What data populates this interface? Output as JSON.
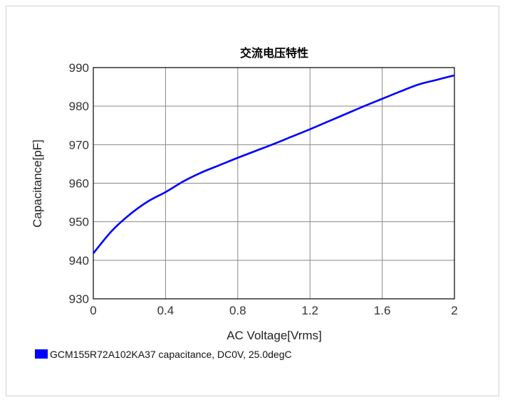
{
  "chart_data": {
    "type": "line",
    "title": "交流电压特性",
    "xlabel": "AC Voltage[Vrms]",
    "ylabel": "Capacitance[pF]",
    "xlim": [
      0,
      2
    ],
    "ylim": [
      930,
      990
    ],
    "x_ticks": [
      "0",
      "0.4",
      "0.8",
      "1.2",
      "1.6",
      "2"
    ],
    "y_ticks": [
      "930",
      "940",
      "950",
      "960",
      "970",
      "980",
      "990"
    ],
    "grid": true,
    "legend_placement": "bottom-left",
    "series": [
      {
        "name": "GCM155R72A102KA37 capacitance, DC0V, 25.0degC",
        "color": "#0000ff",
        "x": [
          0,
          0.1,
          0.2,
          0.3,
          0.4,
          0.5,
          0.6,
          0.7,
          0.8,
          0.9,
          1.0,
          1.1,
          1.2,
          1.3,
          1.4,
          1.5,
          1.6,
          1.7,
          1.8,
          1.9,
          2.0
        ],
        "y": [
          941.8,
          947.5,
          951.8,
          955.2,
          957.7,
          960.5,
          962.8,
          964.7,
          966.6,
          968.4,
          970.2,
          972.1,
          974.0,
          976.0,
          978.0,
          980.0,
          981.9,
          983.8,
          985.6,
          986.8,
          988.0
        ]
      }
    ]
  }
}
